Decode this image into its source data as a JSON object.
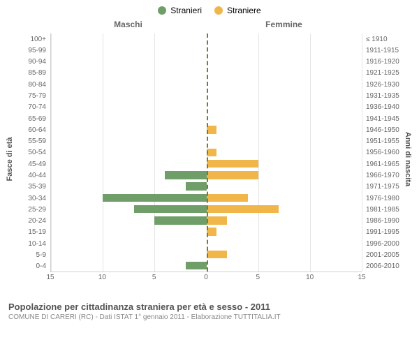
{
  "legend": {
    "male": {
      "label": "Stranieri",
      "color": "#6f9e69"
    },
    "female": {
      "label": "Straniere",
      "color": "#f0b64a"
    }
  },
  "headers": {
    "left": "Maschi",
    "right": "Femmine"
  },
  "axis_label_left": "Fasce di età",
  "axis_label_right": "Anni di nascita",
  "xmax": 15,
  "xticks_left": [
    15,
    10,
    5,
    0
  ],
  "xticks_right": [
    5,
    10,
    15
  ],
  "grid_color": "#e4e4e4",
  "zero_color": "#7a7a3a",
  "background": "#ffffff",
  "border_color": "#d0d0d0",
  "age_labels": [
    "100+",
    "95-99",
    "90-94",
    "85-89",
    "80-84",
    "75-79",
    "70-74",
    "65-69",
    "60-64",
    "55-59",
    "50-54",
    "45-49",
    "40-44",
    "35-39",
    "30-34",
    "25-29",
    "20-24",
    "15-19",
    "10-14",
    "5-9",
    "0-4"
  ],
  "birth_labels": [
    "≤ 1910",
    "1911-1915",
    "1916-1920",
    "1921-1925",
    "1926-1930",
    "1931-1935",
    "1936-1940",
    "1941-1945",
    "1946-1950",
    "1951-1955",
    "1956-1960",
    "1961-1965",
    "1966-1970",
    "1971-1975",
    "1976-1980",
    "1981-1985",
    "1986-1990",
    "1991-1995",
    "1996-2000",
    "2001-2005",
    "2006-2010"
  ],
  "male_values": [
    0,
    0,
    0,
    0,
    0,
    0,
    0,
    0,
    0,
    0,
    0,
    0,
    4,
    2,
    10,
    7,
    5,
    0,
    0,
    0,
    2
  ],
  "female_values": [
    0,
    0,
    0,
    0,
    0,
    0,
    0,
    0,
    1,
    0,
    1,
    5,
    5,
    0,
    4,
    7,
    2,
    1,
    0,
    2,
    0
  ],
  "title": "Popolazione per cittadinanza straniera per età e sesso - 2011",
  "subtitle": "COMUNE DI CARERI (RC) - Dati ISTAT 1° gennaio 2011 - Elaborazione TUTTITALIA.IT"
}
